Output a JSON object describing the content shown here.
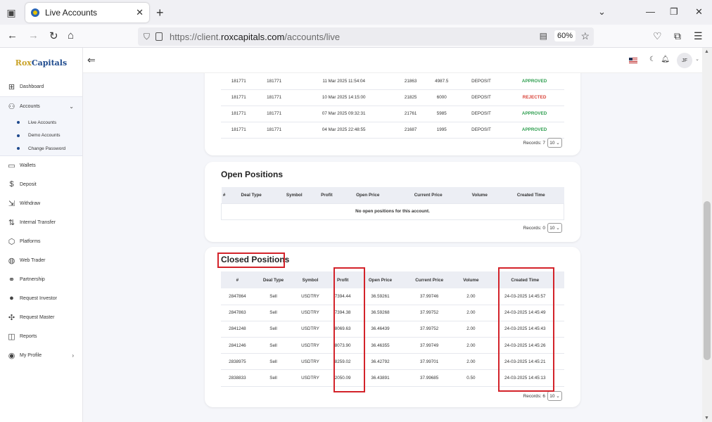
{
  "browser": {
    "tab_title": "Live Accounts",
    "url_prefix": "https://client.",
    "url_domain": "roxcapitals.com",
    "url_path": "/accounts/live",
    "zoom": "60%"
  },
  "logo": {
    "text_a": "Rox",
    "text_b": "Capitals"
  },
  "sidebar": {
    "items": [
      {
        "label": "Dashboard",
        "icon": "grid-icon"
      },
      {
        "label": "Accounts",
        "icon": "users-icon"
      },
      {
        "label": "Wallets",
        "icon": "wallet-icon"
      },
      {
        "label": "Deposit",
        "icon": "deposit-icon"
      },
      {
        "label": "Withdraw",
        "icon": "withdraw-icon"
      },
      {
        "label": "Internal Transfer",
        "icon": "transfer-icon"
      },
      {
        "label": "Platforms",
        "icon": "cube-icon"
      },
      {
        "label": "Web Trader",
        "icon": "globe-icon"
      },
      {
        "label": "Partnership",
        "icon": "handshake-icon"
      },
      {
        "label": "Request Investor",
        "icon": "user-icon"
      },
      {
        "label": "Request Master",
        "icon": "network-icon"
      },
      {
        "label": "Reports",
        "icon": "chart-icon"
      },
      {
        "label": "My Profile",
        "icon": "profile-icon"
      }
    ],
    "accounts_sub": [
      "Live Accounts",
      "Demo Accounts",
      "Change Password"
    ]
  },
  "topbar": {
    "avatar": "JF"
  },
  "transactions": {
    "rows": [
      [
        "181771",
        "181771",
        "11 Mar 2025 11:54:04",
        "21863",
        "4987.5",
        "DEPOSIT",
        "APPROVED"
      ],
      [
        "181771",
        "181771",
        "10 Mar 2025 14:15:00",
        "21825",
        "6000",
        "DEPOSIT",
        "REJECTED"
      ],
      [
        "181771",
        "181771",
        "07 Mar 2025 09:32:31",
        "21761",
        "5985",
        "DEPOSIT",
        "APPROVED"
      ],
      [
        "181771",
        "181771",
        "04 Mar 2025 22:48:55",
        "21687",
        "1995",
        "DEPOSIT",
        "APPROVED"
      ]
    ],
    "records_label": "Records: 7",
    "page_size": "10"
  },
  "open_positions": {
    "title": "Open Positions",
    "headers": [
      "#",
      "Deal Type",
      "Symbol",
      "Profit",
      "Open Price",
      "Current Price",
      "Volume",
      "Created Time"
    ],
    "empty_message": "No open positions for this account.",
    "records_label": "Records: 0",
    "page_size": "10"
  },
  "closed_positions": {
    "title": "Closed Positions",
    "headers": [
      "#",
      "Deal Type",
      "Symbol",
      "Profit",
      "Open Price",
      "Current Price",
      "Volume",
      "Created Time"
    ],
    "rows": [
      [
        "2847864",
        "Sell",
        "USDTRY",
        "7394.44",
        "36.59261",
        "37.99746",
        "2.00",
        "24-03-2025 14:45:57"
      ],
      [
        "2847863",
        "Sell",
        "USDTRY",
        "7394.38",
        "36.59268",
        "37.99752",
        "2.00",
        "24-03-2025 14:45:49"
      ],
      [
        "2841248",
        "Sell",
        "USDTRY",
        "8069.63",
        "36.46439",
        "37.99752",
        "2.00",
        "24-03-2025 14:45:43"
      ],
      [
        "2841246",
        "Sell",
        "USDTRY",
        "8073.90",
        "36.46355",
        "37.99749",
        "2.00",
        "24-03-2025 14:45:26"
      ],
      [
        "2838975",
        "Sell",
        "USDTRY",
        "8259.02",
        "36.42792",
        "37.99701",
        "2.00",
        "24-03-2025 14:45:21"
      ],
      [
        "2838833",
        "Sell",
        "USDTRY",
        "2050.09",
        "36.43891",
        "37.99685",
        "0.50",
        "24-03-2025 14:45:13"
      ]
    ],
    "records_label": "Records: 6",
    "page_size": "10"
  }
}
